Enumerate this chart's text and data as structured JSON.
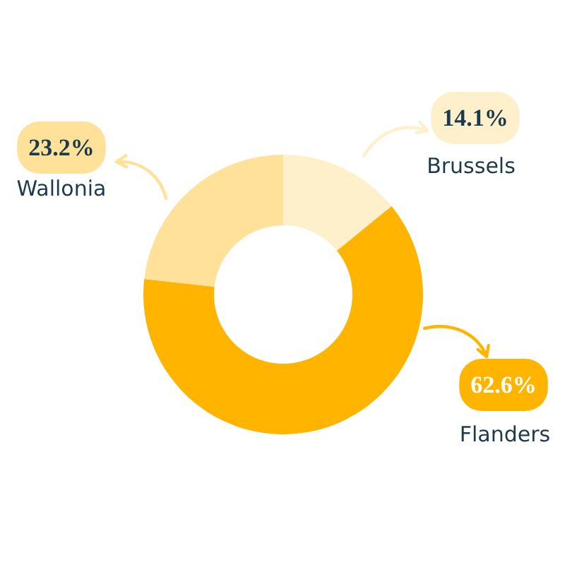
{
  "chart_data": {
    "type": "donut",
    "categories": [
      "Brussels",
      "Flanders",
      "Wallonia"
    ],
    "values": [
      14.1,
      62.6,
      23.2
    ],
    "colors": [
      "#fff0cc",
      "#ffb400",
      "#ffe199"
    ],
    "value_labels": [
      "14.1%",
      "62.6%",
      "23.2%"
    ]
  }
}
